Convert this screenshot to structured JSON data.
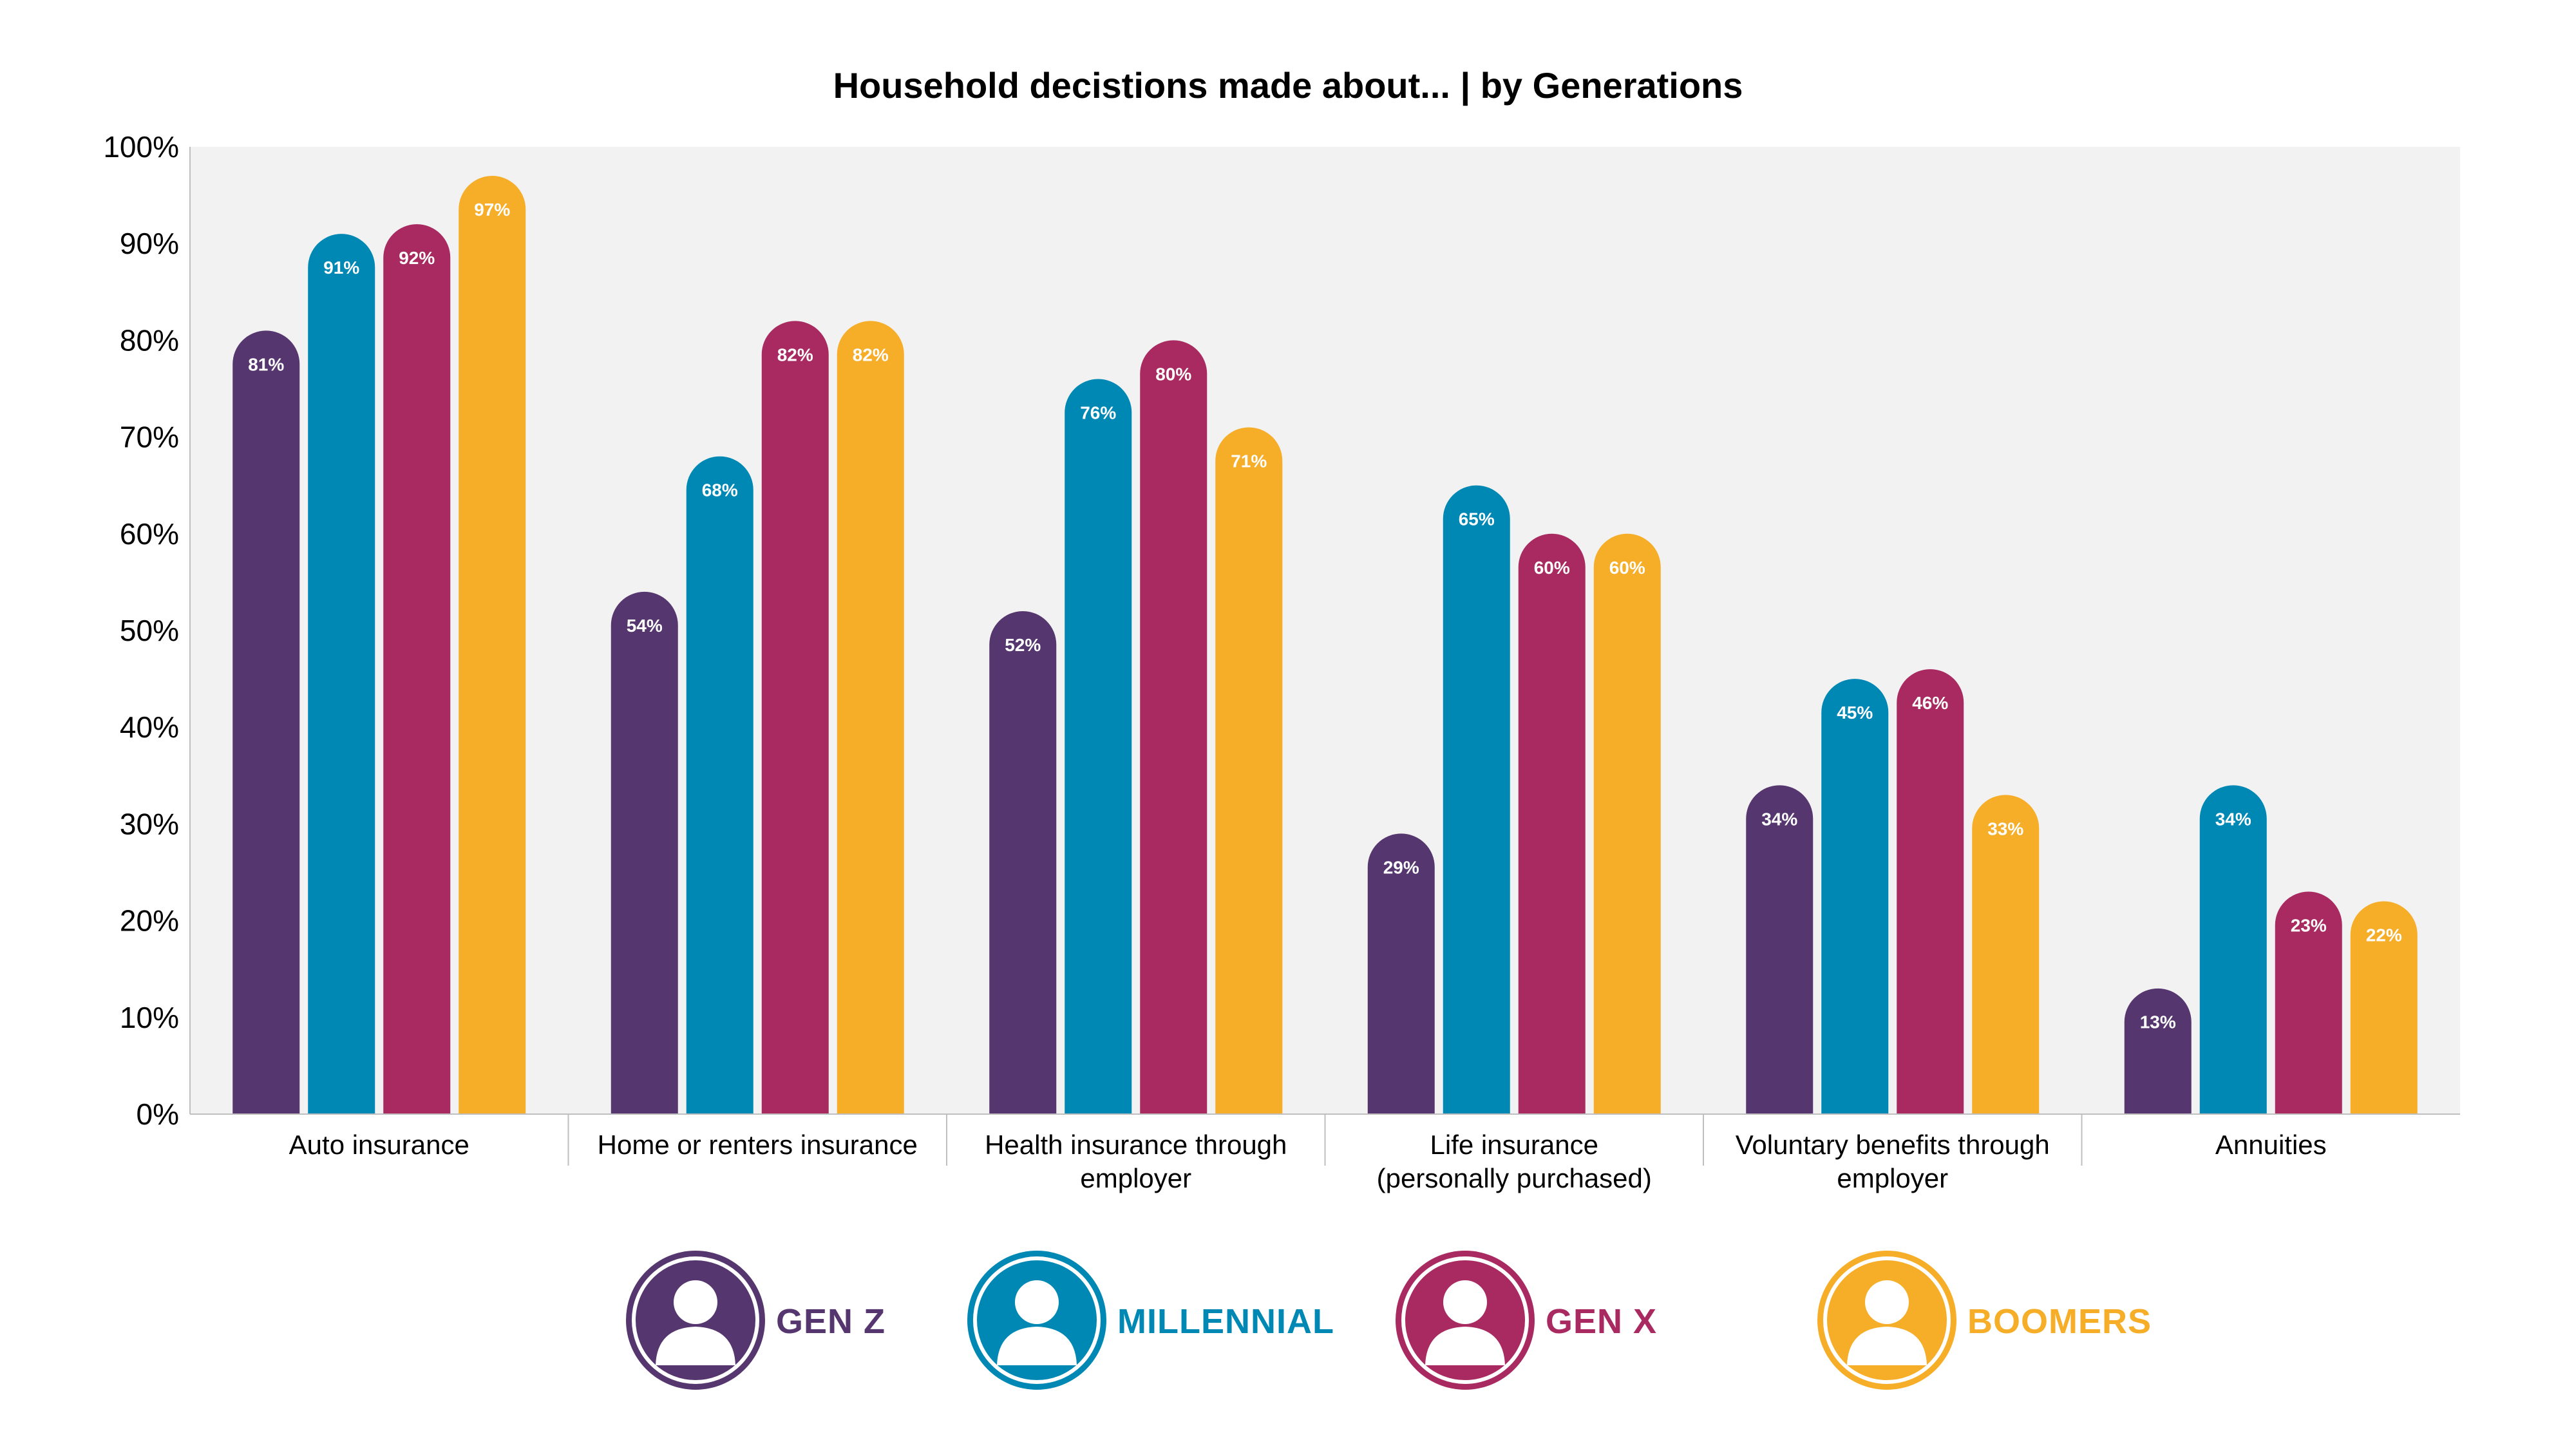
{
  "chart_data": {
    "type": "bar",
    "title": "Household decistions made about... | by Generations",
    "xlabel": "",
    "ylabel": "",
    "ylim": [
      0,
      100
    ],
    "yticks": [
      "0%",
      "10%",
      "20%",
      "30%",
      "40%",
      "50%",
      "60%",
      "70%",
      "80%",
      "90%",
      "100%"
    ],
    "categories": [
      [
        "Auto insurance"
      ],
      [
        "Home or renters insurance"
      ],
      [
        "Health insurance through",
        "employer"
      ],
      [
        "Life insurance",
        "(personally purchased)"
      ],
      [
        "Voluntary benefits through",
        "employer"
      ],
      [
        "Annuities"
      ]
    ],
    "series": [
      {
        "name": "GEN Z",
        "color": "#56366e",
        "icon": "gen-z-avatar-icon",
        "values": [
          81,
          54,
          52,
          29,
          34,
          13
        ]
      },
      {
        "name": "MILLENNIAL",
        "color": "#0088b5",
        "icon": "millennial-avatar-icon",
        "values": [
          91,
          68,
          76,
          65,
          45,
          34
        ]
      },
      {
        "name": "GEN X",
        "color": "#a82a60",
        "icon": "gen-x-avatar-icon",
        "values": [
          92,
          82,
          80,
          60,
          46,
          23
        ]
      },
      {
        "name": "BOOMERS",
        "color": "#f6ad28",
        "icon": "boomers-avatar-icon",
        "values": [
          97,
          82,
          71,
          60,
          33,
          22
        ]
      }
    ],
    "value_suffix": "%",
    "grid": false,
    "plot_background": "#f2f2f2",
    "legend_position": "bottom"
  }
}
